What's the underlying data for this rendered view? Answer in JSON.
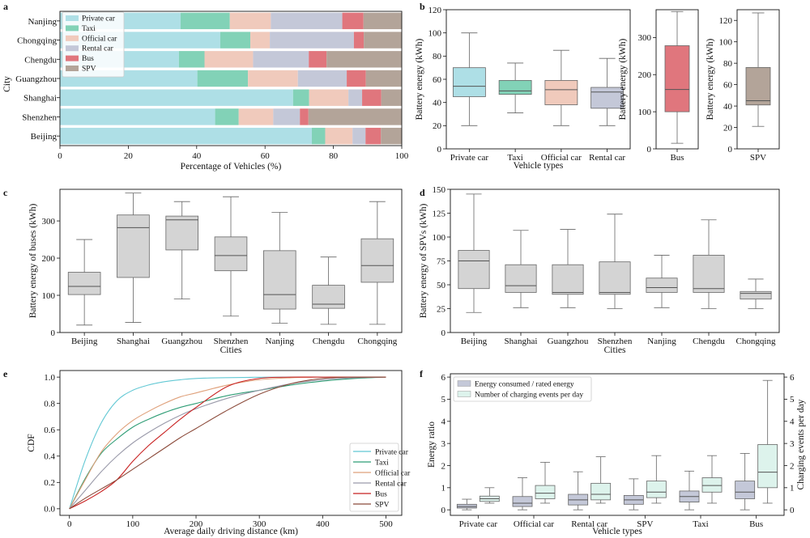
{
  "colors": {
    "private": "#aedfe6",
    "taxi": "#82d2b7",
    "official": "#f0cabc",
    "rental": "#c4c8d8",
    "bus": "#e0767d",
    "spv": "#b3a499",
    "gray_box": "#d4d4d4",
    "cdf_private": "#62c8d4",
    "cdf_taxi": "#2f9d76",
    "cdf_official": "#dfa07a",
    "cdf_rental": "#9a9aaa",
    "cdf_bus": "#c82020",
    "cdf_spv": "#8b4a3a",
    "f_energy": "#c4c8d8",
    "f_charge": "#ddf3ec"
  },
  "chart_data": [
    {
      "id": "a",
      "panel": "a",
      "type": "bar",
      "orientation": "horizontal",
      "stacked": true,
      "xlabel": "Percentage of Vehicles (%)",
      "ylabel": "City",
      "xlim": [
        0,
        100
      ],
      "xticks": [
        0,
        20,
        40,
        60,
        80,
        100
      ],
      "legend_position": "upper-left",
      "categories": [
        "Nanjing",
        "Chongqing",
        "Chengdu",
        "Guangzhou",
        "Shanghai",
        "Shenzhen",
        "Beijing"
      ],
      "series": [
        {
          "name": "Private car",
          "color_key": "private",
          "values": [
            35.3,
            46.9,
            34.8,
            40.2,
            68.2,
            45.4,
            73.7
          ]
        },
        {
          "name": "Taxi",
          "color_key": "taxi",
          "values": [
            14.4,
            8.8,
            7.5,
            14.8,
            4.7,
            6.9,
            3.9
          ]
        },
        {
          "name": "Official car",
          "color_key": "official",
          "values": [
            12.0,
            5.7,
            14.2,
            14.6,
            11.5,
            10.1,
            8.0
          ]
        },
        {
          "name": "Rental car",
          "color_key": "rental",
          "values": [
            20.9,
            24.6,
            16.3,
            14.3,
            4.0,
            7.8,
            3.8
          ]
        },
        {
          "name": "Bus",
          "color_key": "bus",
          "values": [
            6.2,
            2.9,
            5.2,
            5.6,
            5.6,
            2.5,
            4.5
          ]
        },
        {
          "name": "SPV",
          "color_key": "spv",
          "values": [
            11.2,
            11.1,
            22.0,
            10.5,
            6.0,
            27.3,
            6.1
          ]
        }
      ]
    },
    {
      "id": "b1",
      "panel": "b",
      "type": "box",
      "xlabel": "Vehicle types",
      "ylabel": "Battery energy (kWh)",
      "ylim": [
        0,
        120
      ],
      "yticks": [
        0,
        20,
        40,
        60,
        80,
        100,
        120
      ],
      "boxes": [
        {
          "label": "Private car",
          "color_key": "private",
          "min": 20,
          "q1": 45,
          "median": 54,
          "q3": 70,
          "max": 100
        },
        {
          "label": "Taxi",
          "color_key": "taxi",
          "min": 31,
          "q1": 47,
          "median": 50,
          "q3": 59,
          "max": 74
        },
        {
          "label": "Official car",
          "color_key": "official",
          "min": 20,
          "q1": 38,
          "median": 51,
          "q3": 59,
          "max": 85
        },
        {
          "label": "Rental car",
          "color_key": "rental",
          "min": 20,
          "q1": 35,
          "median": 49,
          "q3": 53,
          "max": 78
        }
      ]
    },
    {
      "id": "b2",
      "panel": "b",
      "type": "box",
      "xlabel": "",
      "ylabel": "Battery energy (kWh)",
      "ylim": [
        0,
        375
      ],
      "yticks": [
        0,
        100,
        200,
        300
      ],
      "boxes": [
        {
          "label": "Bus",
          "color_key": "bus",
          "min": 15,
          "q1": 100,
          "median": 160,
          "q3": 278,
          "max": 370
        }
      ]
    },
    {
      "id": "b3",
      "panel": "b",
      "type": "box",
      "xlabel": "",
      "ylabel": "Battery energy (kWh)",
      "ylim": [
        0,
        130
      ],
      "yticks": [
        0,
        20,
        40,
        60,
        80,
        100,
        120
      ],
      "boxes": [
        {
          "label": "SPV",
          "color_key": "spv",
          "min": 21,
          "q1": 41,
          "median": 45,
          "q3": 76,
          "max": 127
        }
      ]
    },
    {
      "id": "c",
      "panel": "c",
      "type": "box",
      "xlabel": "Cities",
      "ylabel": "Battery energy of buses (kWh)",
      "ylim": [
        0,
        385
      ],
      "yticks": [
        0,
        100,
        200,
        300
      ],
      "boxes": [
        {
          "label": "Beijing",
          "color_key": "gray_box",
          "min": 20,
          "q1": 102,
          "median": 124,
          "q3": 162,
          "max": 250
        },
        {
          "label": "Shanghai",
          "color_key": "gray_box",
          "min": 27,
          "q1": 148,
          "median": 282,
          "q3": 316,
          "max": 375
        },
        {
          "label": "Guangzhou",
          "color_key": "gray_box",
          "min": 90,
          "q1": 222,
          "median": 303,
          "q3": 313,
          "max": 352
        },
        {
          "label": "Shenzhen",
          "color_key": "gray_box",
          "min": 44,
          "q1": 166,
          "median": 207,
          "q3": 257,
          "max": 365
        },
        {
          "label": "Nanjing",
          "color_key": "gray_box",
          "min": 25,
          "q1": 63,
          "median": 102,
          "q3": 220,
          "max": 323
        },
        {
          "label": "Chengdu",
          "color_key": "gray_box",
          "min": 22,
          "q1": 65,
          "median": 76,
          "q3": 127,
          "max": 203
        },
        {
          "label": "Chongqing",
          "color_key": "gray_box",
          "min": 22,
          "q1": 135,
          "median": 180,
          "q3": 252,
          "max": 352
        }
      ]
    },
    {
      "id": "d",
      "panel": "d",
      "type": "box",
      "xlabel": "Cities",
      "ylabel": "Battery energy of SPVs (kWh)",
      "ylim": [
        0,
        150
      ],
      "yticks": [
        0,
        25,
        50,
        75,
        100,
        125,
        150
      ],
      "boxes": [
        {
          "label": "Beijing",
          "color_key": "gray_box",
          "min": 21,
          "q1": 46,
          "median": 75,
          "q3": 86,
          "max": 145
        },
        {
          "label": "Shanghai",
          "color_key": "gray_box",
          "min": 26,
          "q1": 42,
          "median": 49,
          "q3": 71,
          "max": 107
        },
        {
          "label": "Guangzhou",
          "color_key": "gray_box",
          "min": 26,
          "q1": 40,
          "median": 42,
          "q3": 71,
          "max": 108
        },
        {
          "label": "Shenzhen",
          "color_key": "gray_box",
          "min": 25,
          "q1": 40,
          "median": 42,
          "q3": 74,
          "max": 124
        },
        {
          "label": "Nanjing",
          "color_key": "gray_box",
          "min": 26,
          "q1": 42,
          "median": 47,
          "q3": 57,
          "max": 81
        },
        {
          "label": "Chengdu",
          "color_key": "gray_box",
          "min": 25,
          "q1": 42,
          "median": 46,
          "q3": 81,
          "max": 118
        },
        {
          "label": "Chongqing",
          "color_key": "gray_box",
          "min": 25,
          "q1": 35,
          "median": 41,
          "q3": 43,
          "max": 56
        }
      ]
    },
    {
      "id": "e",
      "panel": "e",
      "type": "line",
      "xlabel": "Average daily driving distance (km)",
      "ylabel": "CDF",
      "xlim": [
        -15,
        525
      ],
      "ylim": [
        -0.05,
        1.05
      ],
      "xticks": [
        0,
        100,
        200,
        300,
        400,
        500
      ],
      "yticks": [
        0.0,
        0.2,
        0.4,
        0.6,
        0.8,
        1.0
      ],
      "legend_position": "lower-right",
      "x": [
        0,
        25,
        50,
        75,
        100,
        125,
        150,
        175,
        200,
        250,
        300,
        350,
        400,
        450,
        500
      ],
      "series": [
        {
          "name": "Private car",
          "color_key": "cdf_private",
          "values": [
            0,
            0.37,
            0.65,
            0.82,
            0.9,
            0.94,
            0.965,
            0.98,
            0.99,
            0.996,
            0.999,
            1.0,
            1.0,
            1.0,
            1.0
          ]
        },
        {
          "name": "Taxi",
          "color_key": "cdf_taxi",
          "values": [
            0,
            0.23,
            0.42,
            0.53,
            0.62,
            0.68,
            0.73,
            0.77,
            0.8,
            0.86,
            0.9,
            0.94,
            0.97,
            0.99,
            1.0
          ]
        },
        {
          "name": "Official car",
          "color_key": "cdf_official",
          "values": [
            0,
            0.22,
            0.43,
            0.57,
            0.67,
            0.74,
            0.8,
            0.85,
            0.88,
            0.94,
            0.98,
            0.995,
            1.0,
            1.0,
            1.0
          ]
        },
        {
          "name": "Rental car",
          "color_key": "cdf_rental",
          "values": [
            0,
            0.14,
            0.28,
            0.4,
            0.5,
            0.58,
            0.65,
            0.71,
            0.76,
            0.84,
            0.9,
            0.95,
            0.98,
            0.995,
            1.0
          ]
        },
        {
          "name": "Bus",
          "color_key": "cdf_bus",
          "values": [
            0,
            0.06,
            0.13,
            0.22,
            0.36,
            0.48,
            0.58,
            0.68,
            0.77,
            0.93,
            0.99,
            1.0,
            1.0,
            1.0,
            1.0
          ]
        },
        {
          "name": "SPV",
          "color_key": "cdf_spv",
          "values": [
            0,
            0.08,
            0.15,
            0.22,
            0.3,
            0.38,
            0.46,
            0.54,
            0.61,
            0.75,
            0.87,
            0.95,
            0.99,
            1.0,
            1.0
          ]
        }
      ]
    },
    {
      "id": "f",
      "panel": "f",
      "type": "box",
      "paired": true,
      "xlabel": "Vehicle types",
      "ylabel": "Energy ratio",
      "ylabel_right": "Charging events per day",
      "ylim": [
        -0.25,
        6.15
      ],
      "yticks": [
        0,
        1,
        2,
        3,
        4,
        5,
        6
      ],
      "legend_position": "upper-left",
      "legend": [
        {
          "name": "Energy consumed / rated energy",
          "color_key": "f_energy"
        },
        {
          "name": "Number of charging events per day",
          "color_key": "f_charge"
        }
      ],
      "categories": [
        "Private car",
        "Official car",
        "Rental car",
        "SPV",
        "Taxi",
        "Bus"
      ],
      "energy": [
        {
          "min": 0.0,
          "q1": 0.08,
          "median": 0.15,
          "q3": 0.25,
          "max": 0.48
        },
        {
          "min": 0.0,
          "q1": 0.15,
          "median": 0.3,
          "q3": 0.6,
          "max": 1.45
        },
        {
          "min": 0.0,
          "q1": 0.22,
          "median": 0.45,
          "q3": 0.7,
          "max": 1.72
        },
        {
          "min": 0.0,
          "q1": 0.25,
          "median": 0.45,
          "q3": 0.65,
          "max": 1.4
        },
        {
          "min": 0.0,
          "q1": 0.35,
          "median": 0.6,
          "q3": 0.85,
          "max": 1.75
        },
        {
          "min": 0.0,
          "q1": 0.5,
          "median": 0.8,
          "q3": 1.3,
          "max": 2.55
        }
      ],
      "charging": [
        {
          "min": 0.3,
          "q1": 0.38,
          "median": 0.5,
          "q3": 0.62,
          "max": 1.0
        },
        {
          "min": 0.3,
          "q1": 0.5,
          "median": 0.75,
          "q3": 1.1,
          "max": 2.15
        },
        {
          "min": 0.3,
          "q1": 0.45,
          "median": 0.7,
          "q3": 1.2,
          "max": 2.4
        },
        {
          "min": 0.3,
          "q1": 0.55,
          "median": 0.8,
          "q3": 1.3,
          "max": 2.45
        },
        {
          "min": 0.3,
          "q1": 0.8,
          "median": 1.1,
          "q3": 1.45,
          "max": 2.45
        },
        {
          "min": 0.3,
          "q1": 1.0,
          "median": 1.7,
          "q3": 2.95,
          "max": 5.85
        }
      ]
    }
  ]
}
